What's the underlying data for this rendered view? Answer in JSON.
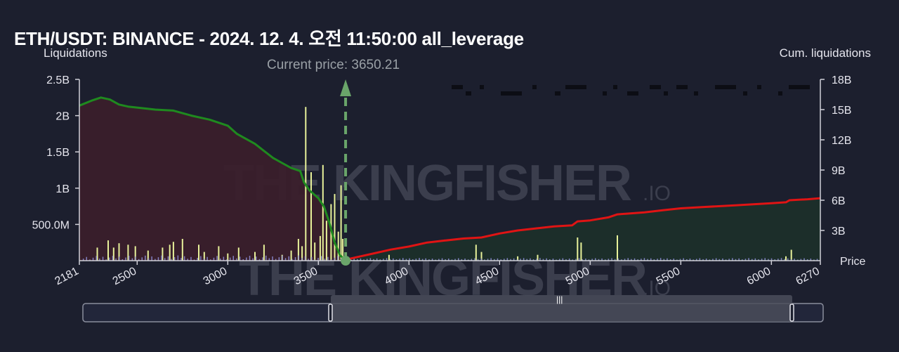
{
  "title": "ETH/USDT: BINANCE - 2024. 12. 4. 오전 11:50:00 all_leverage",
  "watermark": {
    "main": "THE KINGFISHER",
    "suffix": ".IO"
  },
  "current_price_label": "Current price: 3650.21",
  "colors": {
    "background": "#1c1f2e",
    "short_cum_line": "#1f8a1f",
    "long_cum_line": "#e01414",
    "short_area": "#3a1f2b",
    "long_area": "#1c2f2a",
    "bar_yellow": "#e8f29a",
    "bar_purple": "#8f8fd8",
    "current_price_marker": "#6aa56a"
  },
  "chart_data": {
    "type": "bar",
    "title": "ETH/USDT: BINANCE - 2024. 12. 4. 오전 11:50:00 all_leverage",
    "xlabel": "Price",
    "ylabel": "Liquidations",
    "y2label": "Cum. liquidations",
    "xlim": [
      2181,
      6270
    ],
    "ylim": [
      0,
      2500000000
    ],
    "y2lim": [
      0,
      18000000000
    ],
    "x_ticks": [
      "2181",
      "2500",
      "3000",
      "3500",
      "4000",
      "4500",
      "5000",
      "5500",
      "6000",
      "6270"
    ],
    "y_ticks": [
      "500.0M",
      "1B",
      "1.5B",
      "2B",
      "2.5B"
    ],
    "y2_ticks": [
      "3B",
      "6B",
      "9B",
      "12B",
      "15B",
      "18B"
    ],
    "current_price": 3650.21,
    "grid": false,
    "series": [
      {
        "kind": "line",
        "axis": "right",
        "points": [
          [
            2181,
            15.4
          ],
          [
            2250,
            15.9
          ],
          [
            2300,
            16.2
          ],
          [
            2350,
            16.0
          ],
          [
            2400,
            15.5
          ],
          [
            2450,
            15.3
          ],
          [
            2500,
            15.2
          ],
          [
            2600,
            15.0
          ],
          [
            2700,
            14.9
          ],
          [
            2800,
            14.4
          ],
          [
            2900,
            14.0
          ],
          [
            3000,
            13.4
          ],
          [
            3050,
            12.6
          ],
          [
            3100,
            12.1
          ],
          [
            3150,
            11.6
          ],
          [
            3200,
            10.9
          ],
          [
            3250,
            10.2
          ],
          [
            3300,
            9.7
          ],
          [
            3350,
            9.2
          ],
          [
            3400,
            8.9
          ],
          [
            3420,
            7.8
          ],
          [
            3450,
            7.0
          ],
          [
            3500,
            6.2
          ],
          [
            3530,
            5.4
          ],
          [
            3560,
            3.8
          ],
          [
            3590,
            1.8
          ],
          [
            3620,
            0.5
          ],
          [
            3650,
            0.1
          ]
        ]
      },
      {
        "kind": "line",
        "axis": "right",
        "points": [
          [
            3650,
            0.1
          ],
          [
            3700,
            0.3
          ],
          [
            3800,
            0.7
          ],
          [
            3900,
            1.1
          ],
          [
            4000,
            1.4
          ],
          [
            4100,
            1.8
          ],
          [
            4200,
            2.0
          ],
          [
            4300,
            2.2
          ],
          [
            4400,
            2.3
          ],
          [
            4500,
            2.7
          ],
          [
            4600,
            3.0
          ],
          [
            4700,
            3.2
          ],
          [
            4800,
            3.4
          ],
          [
            4900,
            3.5
          ],
          [
            4930,
            3.9
          ],
          [
            5000,
            4.0
          ],
          [
            5100,
            4.3
          ],
          [
            5150,
            4.6
          ],
          [
            5300,
            4.8
          ],
          [
            5400,
            5.0
          ],
          [
            5500,
            5.2
          ],
          [
            5600,
            5.3
          ],
          [
            5700,
            5.4
          ],
          [
            5800,
            5.5
          ],
          [
            5900,
            5.6
          ],
          [
            6000,
            5.7
          ],
          [
            6080,
            5.8
          ],
          [
            6100,
            6.0
          ],
          [
            6200,
            6.1
          ],
          [
            6270,
            6.2
          ]
        ]
      },
      {
        "kind": "bar",
        "axis": "left",
        "points": [
          [
            2280,
            0.18
          ],
          [
            2340,
            0.28
          ],
          [
            2370,
            0.18
          ],
          [
            2400,
            0.24
          ],
          [
            2450,
            0.22
          ],
          [
            2490,
            0.2
          ],
          [
            2560,
            0.14
          ],
          [
            2640,
            0.18
          ],
          [
            2680,
            0.22
          ],
          [
            2700,
            0.26
          ],
          [
            2750,
            0.3
          ],
          [
            2840,
            0.22
          ],
          [
            2870,
            0.12
          ],
          [
            2950,
            0.2
          ],
          [
            3000,
            0.1
          ],
          [
            3060,
            0.18
          ],
          [
            3150,
            0.12
          ],
          [
            3200,
            0.22
          ],
          [
            3300,
            0.08
          ],
          [
            3350,
            0.14
          ],
          [
            3390,
            0.3
          ],
          [
            3410,
            0.2
          ],
          [
            3430,
            2.12
          ],
          [
            3460,
            1.22
          ],
          [
            3480,
            0.25
          ],
          [
            3510,
            0.34
          ],
          [
            3525,
            1.32
          ],
          [
            3545,
            0.55
          ],
          [
            3570,
            0.78
          ],
          [
            3590,
            0.92
          ],
          [
            3610,
            0.4
          ],
          [
            3625,
            1.04
          ],
          [
            3635,
            0.3
          ],
          [
            3890,
            0.08
          ],
          [
            4370,
            0.22
          ],
          [
            4400,
            0.12
          ],
          [
            4600,
            0.06
          ],
          [
            4710,
            0.08
          ],
          [
            4930,
            0.32
          ],
          [
            4950,
            0.25
          ],
          [
            5150,
            0.35
          ],
          [
            6080,
            0.06
          ],
          [
            6110,
            0.15
          ]
        ]
      }
    ]
  }
}
